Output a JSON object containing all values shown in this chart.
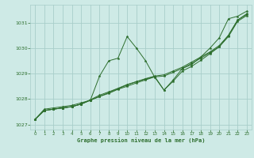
{
  "title": "Graphe pression niveau de la mer (hPa)",
  "bg_color": "#ceeae6",
  "grid_color": "#a8ceca",
  "line_color": "#2d6e2d",
  "marker_color": "#2d6e2d",
  "xlim": [
    -0.5,
    23.5
  ],
  "ylim": [
    1026.8,
    1031.7
  ],
  "yticks": [
    1027,
    1028,
    1029,
    1030,
    1031
  ],
  "xticks": [
    0,
    1,
    2,
    3,
    4,
    5,
    6,
    7,
    8,
    9,
    10,
    11,
    12,
    13,
    14,
    15,
    16,
    17,
    18,
    19,
    20,
    21,
    22,
    23
  ],
  "series": [
    {
      "x": [
        0,
        1,
        2,
        3,
        4,
        5,
        6,
        7,
        8,
        9,
        10,
        11,
        12,
        13,
        14,
        15,
        16,
        17,
        18,
        19,
        20,
        21,
        22,
        23
      ],
      "y": [
        1027.2,
        1027.6,
        1027.65,
        1027.7,
        1027.75,
        1027.85,
        1027.95,
        1028.9,
        1029.5,
        1029.6,
        1030.45,
        1030.0,
        1029.5,
        1028.85,
        1028.35,
        1028.75,
        1029.2,
        1029.35,
        1029.65,
        1030.0,
        1030.4,
        1031.15,
        1031.25,
        1031.45
      ]
    },
    {
      "x": [
        0,
        1,
        2,
        3,
        4,
        5,
        6,
        7,
        8,
        9,
        10,
        11,
        12,
        13,
        14,
        15,
        16,
        17,
        18,
        19,
        20,
        21,
        22,
        23
      ],
      "y": [
        1027.2,
        1027.55,
        1027.6,
        1027.65,
        1027.7,
        1027.8,
        1027.95,
        1028.1,
        1028.25,
        1028.4,
        1028.55,
        1028.68,
        1028.8,
        1028.9,
        1028.95,
        1029.1,
        1029.25,
        1029.45,
        1029.65,
        1029.85,
        1030.1,
        1030.5,
        1031.1,
        1031.35
      ]
    },
    {
      "x": [
        0,
        1,
        2,
        3,
        4,
        5,
        6,
        7,
        8,
        9,
        10,
        11,
        12,
        13,
        14,
        15,
        16,
        17,
        18,
        19,
        20,
        21,
        22,
        23
      ],
      "y": [
        1027.2,
        1027.55,
        1027.6,
        1027.65,
        1027.7,
        1027.8,
        1027.95,
        1028.1,
        1028.22,
        1028.38,
        1028.5,
        1028.63,
        1028.75,
        1028.87,
        1028.9,
        1029.05,
        1029.2,
        1029.4,
        1029.6,
        1029.82,
        1030.05,
        1030.45,
        1031.05,
        1031.28
      ]
    },
    {
      "x": [
        0,
        1,
        2,
        3,
        4,
        5,
        6,
        7,
        8,
        9,
        10,
        11,
        12,
        13,
        14,
        15,
        16,
        17,
        18,
        19,
        20,
        21,
        22,
        23
      ],
      "y": [
        1027.2,
        1027.55,
        1027.6,
        1027.65,
        1027.7,
        1027.8,
        1027.97,
        1028.15,
        1028.28,
        1028.42,
        1028.57,
        1028.68,
        1028.78,
        1028.88,
        1028.35,
        1028.7,
        1029.1,
        1029.28,
        1029.52,
        1029.78,
        1030.05,
        1030.5,
        1031.1,
        1031.32
      ]
    }
  ]
}
